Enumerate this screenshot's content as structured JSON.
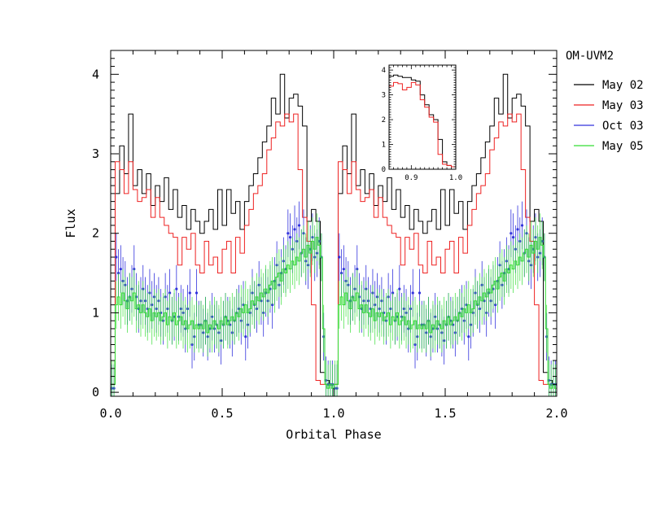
{
  "chart_data": [
    {
      "type": "line",
      "title": "",
      "xlabel": "Orbital Phase",
      "ylabel": "Flux",
      "xlim": [
        0.0,
        2.0
      ],
      "ylim": [
        -0.05,
        4.3
      ],
      "xticks": [
        "0.0",
        "0.5",
        "1.0",
        "1.5",
        "2.0"
      ],
      "yticks": [
        "0",
        "1",
        "2",
        "3",
        "4"
      ],
      "legend": {
        "title": "OM-UVM2",
        "placement": "right-outside-top"
      },
      "series": [
        {
          "name": "May 02",
          "color": "#000000",
          "style": "step",
          "bin": 0.02,
          "values": [
            0.1,
            2.5,
            3.1,
            2.75,
            3.5,
            2.6,
            2.8,
            2.5,
            2.75,
            2.35,
            2.6,
            2.4,
            2.7,
            2.3,
            2.55,
            2.2,
            2.35,
            2.05,
            2.3,
            2.15,
            2.0,
            2.15,
            2.3,
            2.05,
            2.55,
            2.1,
            2.55,
            2.25,
            2.4,
            2.05,
            2.4,
            2.6,
            2.75,
            2.95,
            3.15,
            3.35,
            3.7,
            3.5,
            4.0,
            3.45,
            3.7,
            3.75,
            3.6,
            3.35,
            2.15,
            2.3,
            2.15,
            0.25,
            0.15,
            0.1,
            0.1,
            2.5,
            3.1,
            2.75,
            3.5,
            2.6,
            2.8,
            2.5,
            2.75,
            2.35,
            2.6,
            2.4,
            2.7,
            2.3,
            2.55,
            2.2,
            2.35,
            2.05,
            2.3,
            2.15,
            2.0,
            2.15,
            2.3,
            2.05,
            2.55,
            2.1,
            2.55,
            2.25,
            2.4,
            2.05,
            2.4,
            2.6,
            2.75,
            2.95,
            3.15,
            3.35,
            3.7,
            3.5,
            4.0,
            3.45,
            3.7,
            3.75,
            3.6,
            3.35,
            2.15,
            2.3,
            2.15,
            0.25,
            0.15,
            0.1
          ]
        },
        {
          "name": "May 03",
          "color": "#ee2222",
          "style": "step",
          "bin": 0.02,
          "values": [
            0.1,
            2.9,
            2.8,
            2.5,
            2.9,
            2.55,
            2.4,
            2.45,
            2.55,
            2.2,
            2.45,
            2.2,
            2.1,
            2.0,
            1.95,
            1.6,
            1.95,
            1.8,
            2.0,
            1.6,
            1.5,
            1.9,
            1.6,
            1.7,
            1.5,
            1.8,
            1.9,
            1.5,
            1.95,
            1.75,
            2.1,
            2.3,
            2.5,
            2.6,
            2.75,
            3.05,
            3.2,
            3.4,
            3.35,
            3.5,
            3.4,
            3.5,
            2.8,
            2.2,
            1.9,
            1.1,
            0.15,
            0.1,
            0.1,
            0.1,
            0.1,
            2.9,
            2.8,
            2.5,
            2.9,
            2.55,
            2.4,
            2.45,
            2.55,
            2.2,
            2.45,
            2.2,
            2.1,
            2.0,
            1.95,
            1.6,
            1.95,
            1.8,
            2.0,
            1.6,
            1.5,
            1.9,
            1.6,
            1.7,
            1.5,
            1.8,
            1.9,
            1.5,
            1.95,
            1.75,
            2.1,
            2.3,
            2.5,
            2.6,
            2.75,
            3.05,
            3.2,
            3.4,
            3.35,
            3.5,
            3.4,
            3.5,
            2.8,
            2.2,
            1.9,
            1.1,
            0.15,
            0.1,
            0.1,
            0.1
          ]
        },
        {
          "name": "Oct 03",
          "color": "#3333dd",
          "style": "points-with-errorbars",
          "bin": 0.01,
          "x": [
            0.005,
            0.015,
            0.025,
            0.035,
            0.045,
            0.055,
            0.065,
            0.075,
            0.085,
            0.095,
            0.105,
            0.115,
            0.125,
            0.135,
            0.145,
            0.155,
            0.165,
            0.175,
            0.185,
            0.195,
            0.205,
            0.215,
            0.225,
            0.235,
            0.245,
            0.255,
            0.265,
            0.275,
            0.285,
            0.295,
            0.305,
            0.315,
            0.325,
            0.335,
            0.345,
            0.355,
            0.365,
            0.375,
            0.385,
            0.395,
            0.405,
            0.415,
            0.425,
            0.435,
            0.445,
            0.455,
            0.465,
            0.475,
            0.485,
            0.495,
            0.505,
            0.515,
            0.525,
            0.535,
            0.545,
            0.555,
            0.565,
            0.575,
            0.585,
            0.595,
            0.605,
            0.615,
            0.625,
            0.635,
            0.645,
            0.655,
            0.665,
            0.675,
            0.685,
            0.695,
            0.705,
            0.715,
            0.725,
            0.735,
            0.745,
            0.755,
            0.765,
            0.775,
            0.785,
            0.795,
            0.805,
            0.815,
            0.825,
            0.835,
            0.845,
            0.855,
            0.865,
            0.875,
            0.885,
            0.895,
            0.905,
            0.915,
            0.925,
            0.935,
            0.945,
            0.955,
            0.965,
            0.975,
            0.985,
            0.995,
            1.005,
            1.015,
            1.025,
            1.035,
            1.045,
            1.055,
            1.065,
            1.075,
            1.085,
            1.095,
            1.105,
            1.115,
            1.125,
            1.135,
            1.145,
            1.155,
            1.165,
            1.175,
            1.185,
            1.195,
            1.205,
            1.215,
            1.225,
            1.235,
            1.245,
            1.255,
            1.265,
            1.275,
            1.285,
            1.295,
            1.305,
            1.315,
            1.325,
            1.335,
            1.345,
            1.355,
            1.365,
            1.375,
            1.385,
            1.395,
            1.405,
            1.415,
            1.425,
            1.435,
            1.445,
            1.455,
            1.465,
            1.475,
            1.485,
            1.495,
            1.505,
            1.515,
            1.525,
            1.535,
            1.545,
            1.555,
            1.565,
            1.575,
            1.585,
            1.595,
            1.605,
            1.615,
            1.625,
            1.635,
            1.645,
            1.655,
            1.665,
            1.675,
            1.685,
            1.695,
            1.705,
            1.715,
            1.725,
            1.735,
            1.745,
            1.755,
            1.765,
            1.775,
            1.785,
            1.795,
            1.805,
            1.815,
            1.825,
            1.835,
            1.845,
            1.855,
            1.865,
            1.875,
            1.885,
            1.895,
            1.905,
            1.915,
            1.925,
            1.935,
            1.945,
            1.955,
            1.965,
            1.975,
            1.985,
            1.995
          ],
          "y": [
            0.05,
            0.05,
            1.7,
            1.5,
            1.55,
            1.4,
            1.35,
            1.15,
            1.2,
            1.3,
            1.55,
            1.2,
            1.05,
            1.15,
            1.3,
            1.15,
            1.05,
            1.25,
            1.1,
            1.2,
            1.05,
            1.15,
            1.0,
            0.9,
            1.2,
            1.05,
            1.25,
            0.9,
            0.95,
            1.3,
            0.95,
            1.05,
            1.0,
            0.8,
            1.05,
            1.25,
            0.6,
            0.7,
            1.25,
            0.85,
            0.85,
            0.75,
            0.9,
            0.7,
            0.8,
            0.95,
            0.8,
            0.85,
            0.75,
            0.65,
            0.85,
            0.95,
            0.9,
            0.85,
            0.75,
            0.9,
            1.0,
            1.05,
            0.9,
            1.1,
            0.7,
            0.85,
            1.0,
            1.25,
            1.1,
            1.05,
            1.35,
            1.15,
            1.0,
            1.25,
            1.15,
            1.3,
            1.1,
            1.4,
            1.6,
            1.35,
            1.5,
            1.65,
            1.55,
            2.0,
            1.95,
            1.8,
            2.05,
            1.9,
            2.1,
            1.75,
            2.0,
            1.65,
            1.6,
            1.8,
            1.95,
            1.7,
            1.75,
            1.9,
            1.7,
            0.7,
            0.15,
            0.1,
            0.1,
            0.1,
            0.05,
            0.05,
            1.7,
            1.5,
            1.55,
            1.4,
            1.35,
            1.15,
            1.2,
            1.3,
            1.55,
            1.2,
            1.05,
            1.15,
            1.3,
            1.15,
            1.05,
            1.25,
            1.1,
            1.2,
            1.05,
            1.15,
            1.0,
            0.9,
            1.2,
            1.05,
            1.25,
            0.9,
            0.95,
            1.3,
            0.95,
            1.05,
            1.0,
            0.8,
            1.05,
            1.25,
            0.6,
            0.7,
            1.25,
            0.85,
            0.85,
            0.75,
            0.9,
            0.7,
            0.8,
            0.95,
            0.8,
            0.85,
            0.75,
            0.65,
            0.85,
            0.95,
            0.9,
            0.85,
            0.75,
            0.9,
            1.0,
            1.05,
            0.9,
            1.1,
            0.7,
            0.85,
            1.0,
            1.25,
            1.1,
            1.05,
            1.35,
            1.15,
            1.0,
            1.25,
            1.15,
            1.3,
            1.1,
            1.4,
            1.6,
            1.35,
            1.5,
            1.65,
            1.55,
            2.0,
            1.95,
            1.8,
            2.05,
            1.9,
            2.1,
            1.75,
            2.0,
            1.65,
            1.6,
            1.8,
            1.95,
            1.7,
            1.75,
            1.9,
            1.7,
            0.7,
            0.15,
            0.1,
            0.1,
            0.1
          ],
          "error": 0.3
        },
        {
          "name": "May 05",
          "color": "#33dd33",
          "style": "step-with-errorbars",
          "bin": 0.01,
          "values": [
            0.1,
            0.1,
            1.1,
            1.2,
            1.1,
            1.25,
            1.15,
            1.05,
            1.2,
            1.15,
            1.25,
            1.05,
            1.1,
            1.0,
            1.1,
            1.0,
            0.95,
            1.05,
            0.9,
            1.0,
            0.95,
            1.0,
            0.9,
            0.95,
            1.0,
            0.85,
            0.95,
            0.9,
            1.0,
            0.85,
            0.9,
            0.95,
            0.85,
            0.9,
            0.8,
            0.85,
            0.9,
            0.8,
            0.85,
            0.8,
            0.85,
            0.8,
            0.9,
            0.75,
            0.85,
            0.8,
            0.9,
            0.85,
            0.8,
            0.9,
            0.85,
            0.95,
            0.85,
            0.9,
            0.95,
            0.9,
            1.0,
            0.95,
            1.05,
            1.0,
            1.1,
            1.0,
            1.05,
            1.15,
            1.1,
            1.2,
            1.15,
            1.25,
            1.2,
            1.3,
            1.25,
            1.35,
            1.4,
            1.3,
            1.45,
            1.5,
            1.4,
            1.55,
            1.5,
            1.6,
            1.55,
            1.65,
            1.6,
            1.7,
            1.65,
            1.75,
            1.8,
            1.7,
            1.85,
            1.75,
            1.9,
            1.8,
            1.95,
            1.85,
            1.7,
            0.8,
            0.1,
            0.05,
            0.1,
            0.05,
            0.1,
            0.1,
            1.1,
            1.2,
            1.1,
            1.25,
            1.15,
            1.05,
            1.2,
            1.15,
            1.25,
            1.05,
            1.1,
            1.0,
            1.1,
            1.0,
            0.95,
            1.05,
            0.9,
            1.0,
            0.95,
            1.0,
            0.9,
            0.95,
            1.0,
            0.85,
            0.95,
            0.9,
            1.0,
            0.85,
            0.9,
            0.95,
            0.85,
            0.9,
            0.8,
            0.85,
            0.9,
            0.8,
            0.85,
            0.8,
            0.85,
            0.8,
            0.9,
            0.75,
            0.85,
            0.8,
            0.9,
            0.85,
            0.8,
            0.9,
            0.85,
            0.95,
            0.85,
            0.9,
            0.95,
            0.9,
            1.0,
            0.95,
            1.05,
            1.0,
            1.1,
            1.0,
            1.05,
            1.15,
            1.1,
            1.2,
            1.15,
            1.25,
            1.2,
            1.3,
            1.25,
            1.35,
            1.4,
            1.3,
            1.45,
            1.5,
            1.4,
            1.55,
            1.5,
            1.6,
            1.55,
            1.65,
            1.6,
            1.7,
            1.65,
            1.75,
            1.8,
            1.7,
            1.85,
            1.75,
            1.9,
            1.8,
            1.95,
            1.85,
            1.7,
            0.8,
            0.1,
            0.05,
            0.1,
            0.05
          ],
          "error": 0.3
        }
      ]
    },
    {
      "type": "line",
      "title": "",
      "xlabel": "",
      "ylabel": "",
      "xlim": [
        0.85,
        1.0
      ],
      "ylim": [
        0.0,
        4.2
      ],
      "xticks": [
        "0.9",
        "1.0"
      ],
      "yticks": [
        "0",
        "1",
        "2",
        "3",
        "4"
      ],
      "placement": "inset-top-right",
      "series": [
        {
          "name": "May 02",
          "color": "#000000",
          "style": "step",
          "bin": 0.01,
          "x0": 0.85,
          "values": [
            3.75,
            3.8,
            3.75,
            3.7,
            3.7,
            3.6,
            3.55,
            3.0,
            2.6,
            2.2,
            2.0,
            1.2,
            0.3,
            0.15,
            0.1
          ]
        },
        {
          "name": "May 03",
          "color": "#ee2222",
          "style": "step",
          "bin": 0.01,
          "x0": 0.85,
          "values": [
            3.35,
            3.5,
            3.45,
            3.2,
            3.3,
            3.5,
            3.4,
            2.8,
            2.5,
            2.1,
            1.9,
            0.6,
            0.2,
            0.15,
            0.1
          ]
        }
      ]
    }
  ]
}
